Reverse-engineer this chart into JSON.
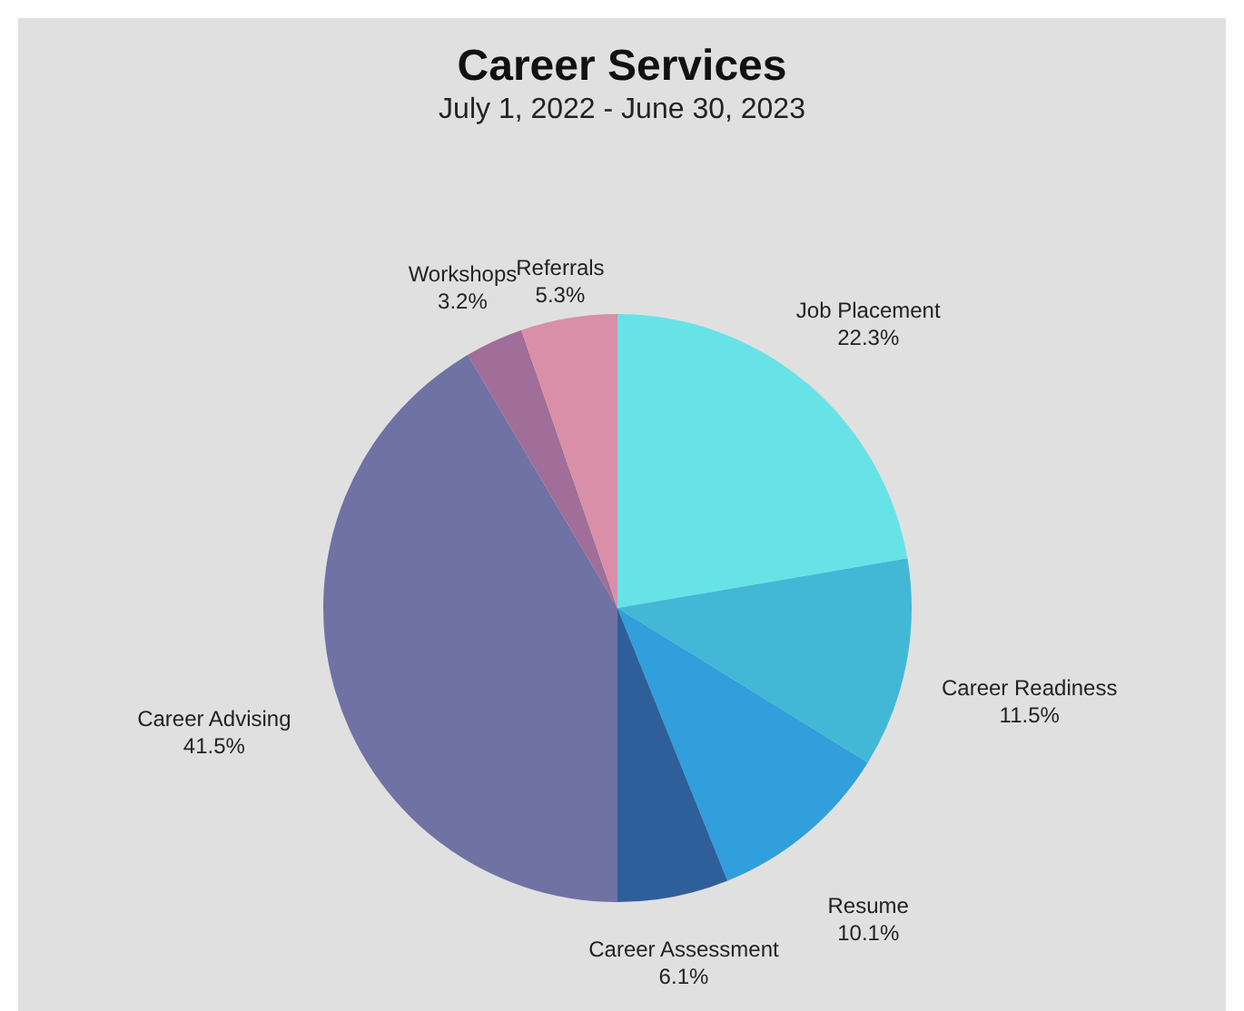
{
  "chart_data": {
    "type": "pie",
    "title": "Career Services",
    "subtitle": "July 1, 2022 - June 30, 2023",
    "categories": [
      "Job Placement",
      "Career Readiness",
      "Resume",
      "Career Assessment",
      "Career Advising",
      "Workshops",
      "Referrals"
    ],
    "values": [
      22.3,
      11.5,
      10.1,
      6.1,
      41.5,
      3.2,
      5.3
    ],
    "value_labels": [
      "22.3%",
      "11.5%",
      "10.1%",
      "6.1%",
      "41.5%",
      "3.2%",
      "5.3%"
    ],
    "colors": [
      "#67e3e8",
      "#42b8d6",
      "#319fdb",
      "#2e5f9a",
      "#7072a4",
      "#a06e98",
      "#d98fa8"
    ]
  }
}
